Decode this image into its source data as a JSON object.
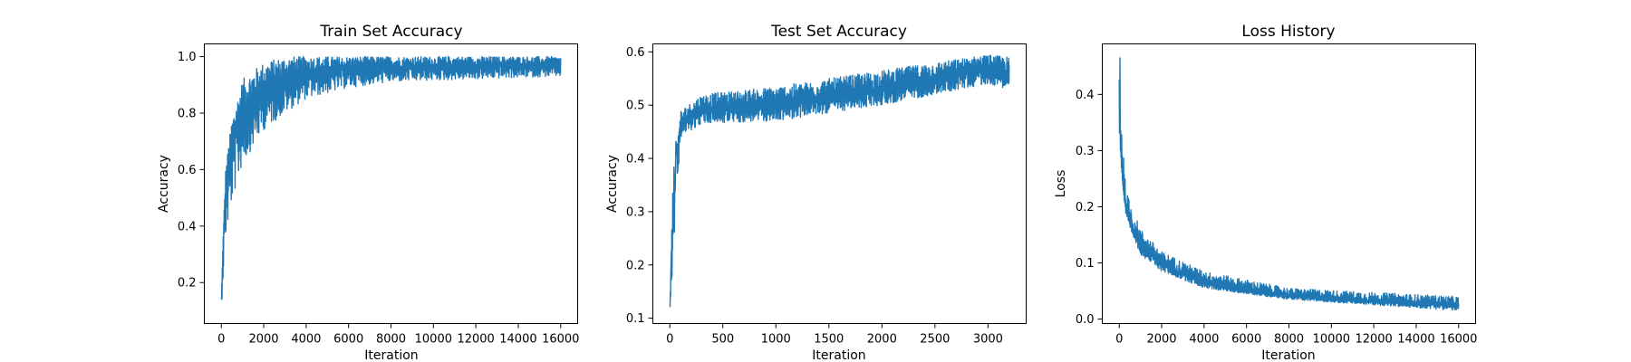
{
  "figure": {
    "line_color": "#1f77b4"
  },
  "chart_data": [
    {
      "type": "line",
      "title": "Train Set Accuracy",
      "xlabel": "Iteration",
      "ylabel": "Accuracy",
      "xlim": [
        -800,
        16800
      ],
      "ylim": [
        0.055,
        1.045
      ],
      "xticks": [
        0,
        2000,
        4000,
        6000,
        8000,
        10000,
        12000,
        14000,
        16000
      ],
      "xtick_labels": [
        "0",
        "2000",
        "4000",
        "6000",
        "8000",
        "10000",
        "12000",
        "14000",
        "16000"
      ],
      "yticks": [
        0.2,
        0.4,
        0.6,
        0.8,
        1.0
      ],
      "ytick_labels": [
        "0.2",
        "0.4",
        "0.6",
        "0.8",
        "1.0"
      ],
      "grid": false,
      "trend": {
        "x": [
          0,
          100,
          200,
          300,
          400,
          500,
          600,
          800,
          1000,
          1200,
          1500,
          2000,
          2500,
          3000,
          3500,
          4000,
          5000,
          6000,
          7000,
          8000,
          10000,
          12000,
          14000,
          16000
        ],
        "y": [
          0.12,
          0.4,
          0.52,
          0.6,
          0.65,
          0.69,
          0.72,
          0.76,
          0.8,
          0.82,
          0.85,
          0.88,
          0.9,
          0.915,
          0.93,
          0.94,
          0.95,
          0.955,
          0.96,
          0.962,
          0.965,
          0.968,
          0.97,
          0.97
        ]
      },
      "band": {
        "x": [
          0,
          200,
          500,
          1000,
          2000,
          3000,
          4000,
          6000,
          8000,
          12000,
          16000
        ],
        "lower": [
          0.1,
          0.35,
          0.48,
          0.62,
          0.74,
          0.8,
          0.85,
          0.89,
          0.91,
          0.92,
          0.93
        ],
        "upper": [
          0.15,
          0.6,
          0.78,
          0.92,
          0.98,
          1.0,
          1.0,
          1.0,
          1.0,
          1.0,
          1.0
        ]
      }
    },
    {
      "type": "line",
      "title": "Test Set Accuracy",
      "xlabel": "Iteration",
      "ylabel": "Accuracy",
      "xlim": [
        -160,
        3360
      ],
      "ylim": [
        0.09,
        0.615
      ],
      "xticks": [
        0,
        500,
        1000,
        1500,
        2000,
        2500,
        3000
      ],
      "xtick_labels": [
        "0",
        "500",
        "1000",
        "1500",
        "2000",
        "2500",
        "3000"
      ],
      "yticks": [
        0.1,
        0.2,
        0.3,
        0.4,
        0.5,
        0.6
      ],
      "ytick_labels": [
        "0.1",
        "0.2",
        "0.3",
        "0.4",
        "0.5",
        "0.6"
      ],
      "grid": false,
      "trend": {
        "x": [
          0,
          10,
          20,
          40,
          60,
          100,
          150,
          200,
          300,
          500,
          700,
          1000,
          1300,
          1500,
          1800,
          2000,
          2200,
          2500,
          2800,
          3000,
          3200
        ],
        "y": [
          0.12,
          0.2,
          0.3,
          0.4,
          0.44,
          0.46,
          0.47,
          0.48,
          0.49,
          0.495,
          0.495,
          0.5,
          0.51,
          0.515,
          0.525,
          0.53,
          0.54,
          0.55,
          0.565,
          0.57,
          0.56
        ]
      },
      "band": {
        "x": [
          0,
          100,
          300,
          1000,
          2000,
          3000,
          3200
        ],
        "lower": [
          0.11,
          0.44,
          0.465,
          0.47,
          0.5,
          0.54,
          0.53
        ],
        "upper": [
          0.13,
          0.49,
          0.52,
          0.535,
          0.565,
          0.595,
          0.59
        ]
      }
    },
    {
      "type": "line",
      "title": "Loss History",
      "xlabel": "Iteration",
      "ylabel": "Loss",
      "xlim": [
        -800,
        16800
      ],
      "ylim": [
        -0.008,
        0.49
      ],
      "xticks": [
        0,
        2000,
        4000,
        6000,
        8000,
        10000,
        12000,
        14000,
        16000
      ],
      "xtick_labels": [
        "0",
        "2000",
        "4000",
        "6000",
        "8000",
        "10000",
        "12000",
        "14000",
        "16000"
      ],
      "yticks": [
        0.0,
        0.1,
        0.2,
        0.3,
        0.4
      ],
      "ytick_labels": [
        "0.0",
        "0.1",
        "0.2",
        "0.3",
        "0.4"
      ],
      "grid": false,
      "trend": {
        "x": [
          0,
          50,
          100,
          200,
          300,
          500,
          700,
          1000,
          1500,
          2000,
          3000,
          4000,
          5000,
          6000,
          8000,
          10000,
          12000,
          14000,
          16000
        ],
        "y": [
          0.36,
          0.3,
          0.26,
          0.22,
          0.2,
          0.17,
          0.15,
          0.135,
          0.115,
          0.1,
          0.08,
          0.068,
          0.058,
          0.05,
          0.042,
          0.036,
          0.031,
          0.028,
          0.025
        ],
        "peak": 0.465
      },
      "band": {
        "x": [
          0,
          300,
          1000,
          2000,
          4000,
          8000,
          16000
        ],
        "lower": [
          0.33,
          0.18,
          0.115,
          0.085,
          0.055,
          0.035,
          0.015
        ],
        "upper": [
          0.465,
          0.23,
          0.16,
          0.12,
          0.085,
          0.055,
          0.04
        ]
      }
    }
  ]
}
